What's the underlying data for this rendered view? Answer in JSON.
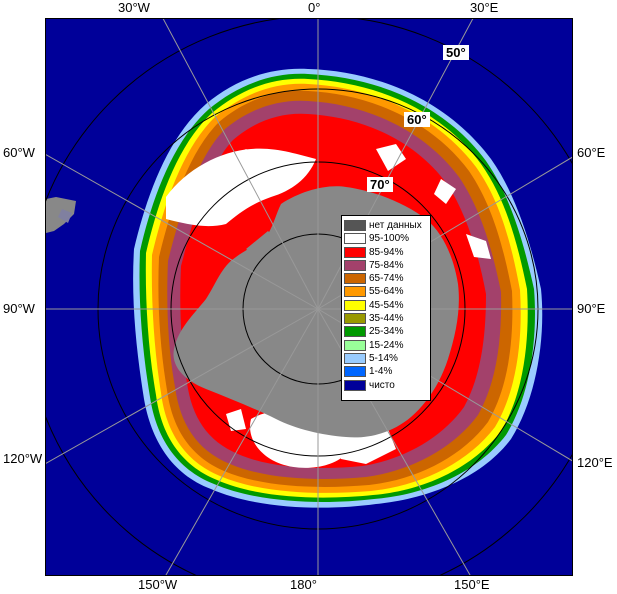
{
  "graticule": {
    "top": [
      "30°W",
      "0°",
      "30°E"
    ],
    "bottom": [
      "150°W",
      "180°",
      "150°E"
    ],
    "left": [
      "60°W",
      "90°W",
      "120°W"
    ],
    "right": [
      "60°E",
      "90°E",
      "120°E"
    ],
    "latitudes": [
      "50°",
      "60°",
      "70°"
    ]
  },
  "legend": [
    {
      "label": "нет данных",
      "color": "#555555"
    },
    {
      "label": "95-100%",
      "color": "#ffffff"
    },
    {
      "label": "85-94%",
      "color": "#ff0000"
    },
    {
      "label": "75-84%",
      "color": "#a3416b"
    },
    {
      "label": "65-74%",
      "color": "#cc6600"
    },
    {
      "label": "55-64%",
      "color": "#ff9900"
    },
    {
      "label": "45-54%",
      "color": "#ffff00"
    },
    {
      "label": "35-44%",
      "color": "#999900"
    },
    {
      "label": "25-34%",
      "color": "#009900"
    },
    {
      "label": "15-24%",
      "color": "#99ff99"
    },
    {
      "label": "5-14%",
      "color": "#99ccff"
    },
    {
      "label": "1-4%",
      "color": "#0066ff"
    },
    {
      "label": "чисто",
      "color": "#000099"
    }
  ],
  "colors": {
    "ocean": "#000099",
    "land": "#888888",
    "graticule": "#999999",
    "circle_lines": "#000000"
  }
}
